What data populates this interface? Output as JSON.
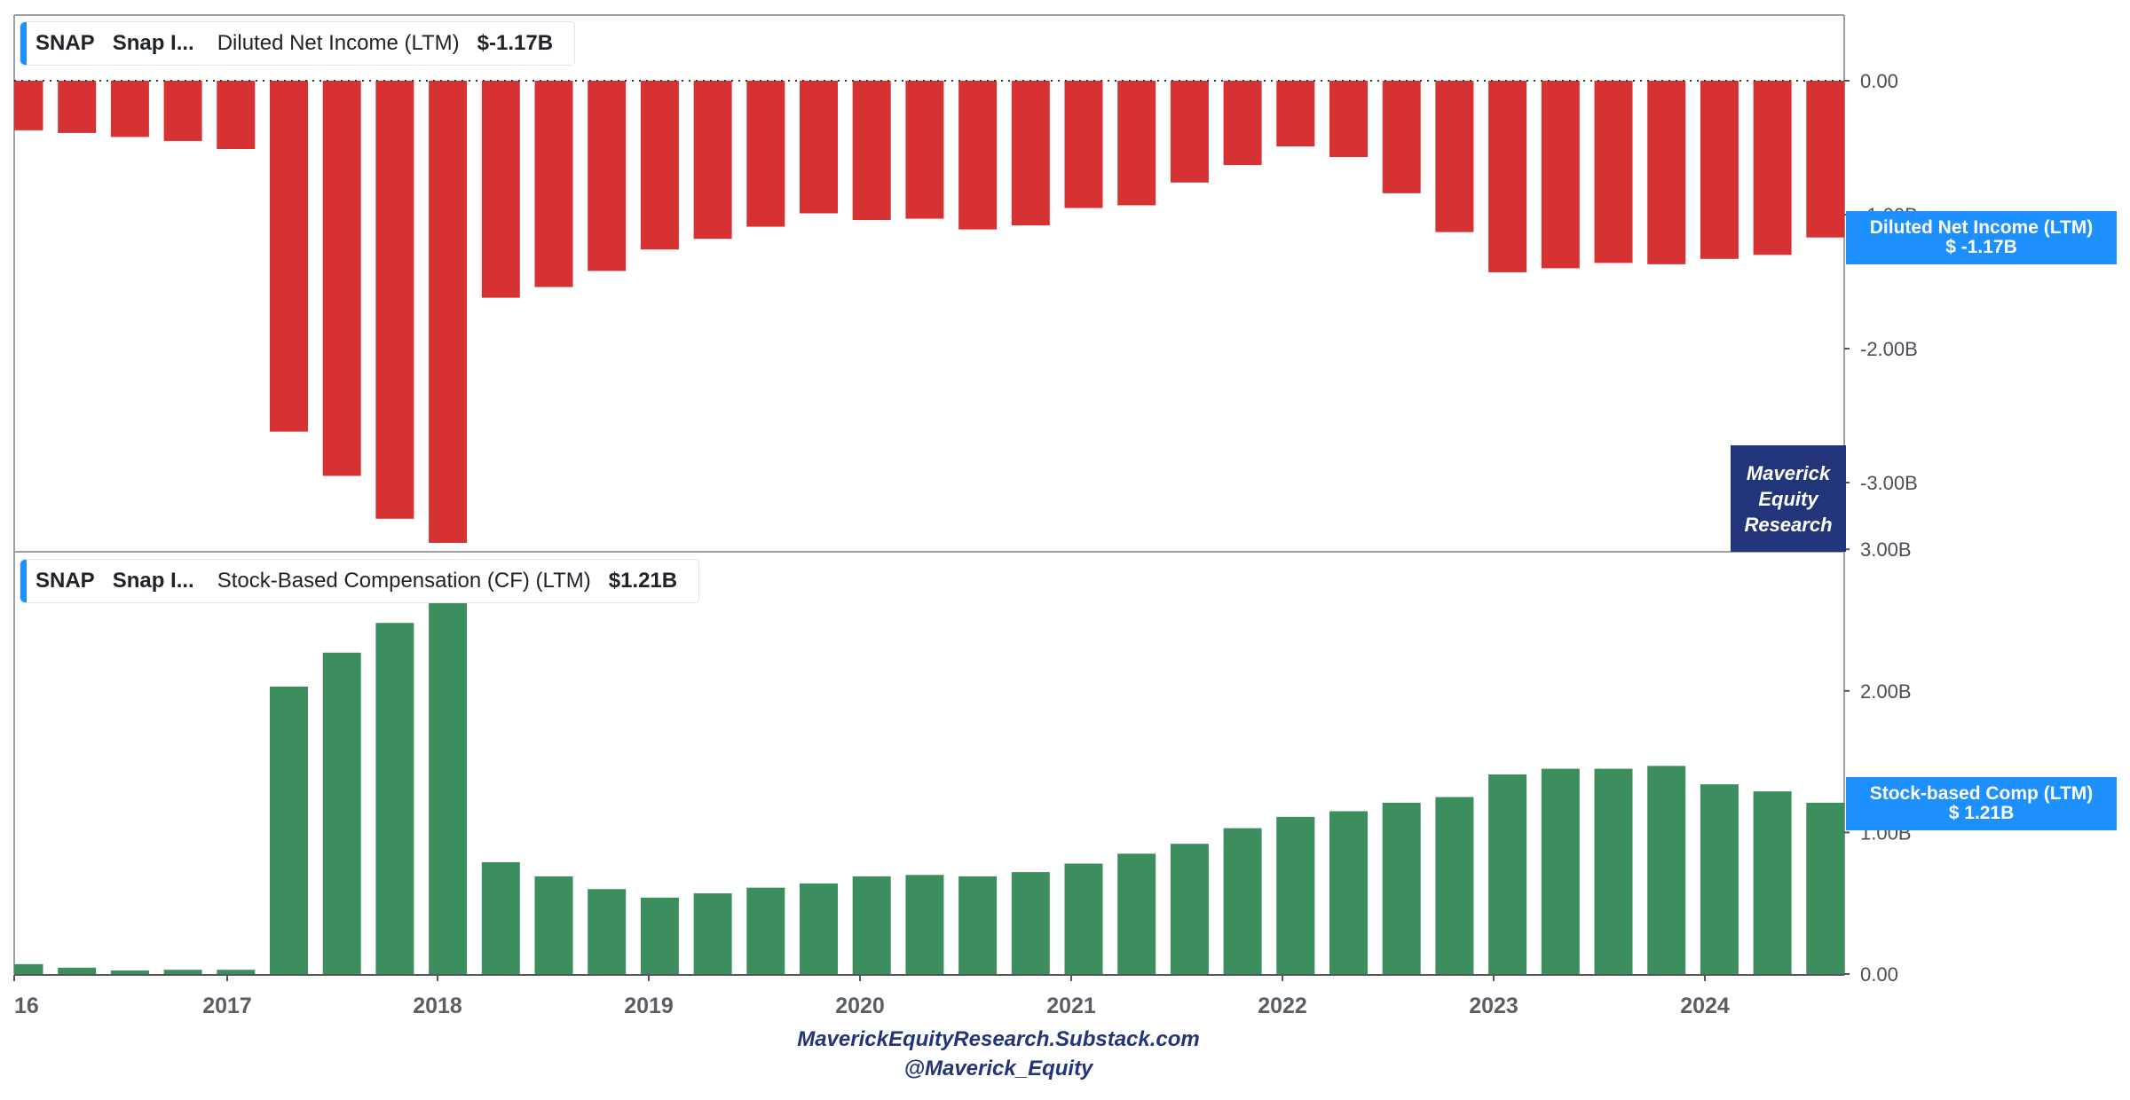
{
  "colors": {
    "negative_bar": "#d63133",
    "positive_bar": "#3d8e5e",
    "accent": "#1e8fff",
    "watermark_bg": "#23357a"
  },
  "chart_data": [
    {
      "type": "bar",
      "legend": {
        "ticker": "SNAP",
        "company": "Snap I...",
        "metric": "Diluted Net Income (LTM)",
        "value": "$-1.17B"
      },
      "axis_tag": {
        "line1": "Diluted Net Income (LTM)",
        "line2": "$ -1.17B"
      },
      "y_ticks": [
        "0.00",
        "-1.00B",
        "-2.00B",
        "-3.00B"
      ],
      "ylim": [
        -3.45,
        0.4
      ],
      "values": [
        -0.37,
        -0.39,
        -0.42,
        -0.45,
        -0.51,
        -2.62,
        -2.95,
        -3.27,
        -3.45,
        -1.62,
        -1.54,
        -1.42,
        -1.26,
        -1.18,
        -1.09,
        -0.99,
        -1.04,
        -1.03,
        -1.11,
        -1.08,
        -0.95,
        -0.93,
        -0.76,
        -0.63,
        -0.49,
        -0.57,
        -0.84,
        -1.13,
        -1.43,
        -1.4,
        -1.36,
        -1.37,
        -1.33,
        -1.3,
        -1.17
      ]
    },
    {
      "type": "bar",
      "legend": {
        "ticker": "SNAP",
        "company": "Snap I...",
        "metric": "Stock-Based Compensation (CF) (LTM)",
        "value": "$1.21B"
      },
      "axis_tag": {
        "line1": "Stock-based Comp (LTM)",
        "line2": "$ 1.21B"
      },
      "y_ticks": [
        "0.00",
        "1.00B",
        "2.00B",
        "3.00B"
      ],
      "ylim": [
        0,
        3.0
      ],
      "values": [
        0.07,
        0.045,
        0.025,
        0.03,
        0.03,
        2.03,
        2.27,
        2.48,
        2.65,
        0.79,
        0.69,
        0.6,
        0.54,
        0.57,
        0.61,
        0.64,
        0.69,
        0.7,
        0.69,
        0.72,
        0.78,
        0.85,
        0.92,
        1.03,
        1.11,
        1.15,
        1.21,
        1.25,
        1.41,
        1.45,
        1.45,
        1.47,
        1.34,
        1.29,
        1.21
      ]
    }
  ],
  "x_axis": {
    "labels": [
      "16",
      "2017",
      "2018",
      "2019",
      "2020",
      "2021",
      "2022",
      "2023",
      "2024"
    ]
  },
  "watermark": [
    "Maverick",
    "Equity",
    "Research"
  ],
  "footer": {
    "line1": "MaverickEquityResearch.Substack.com",
    "line2": "@Maverick_Equity"
  }
}
